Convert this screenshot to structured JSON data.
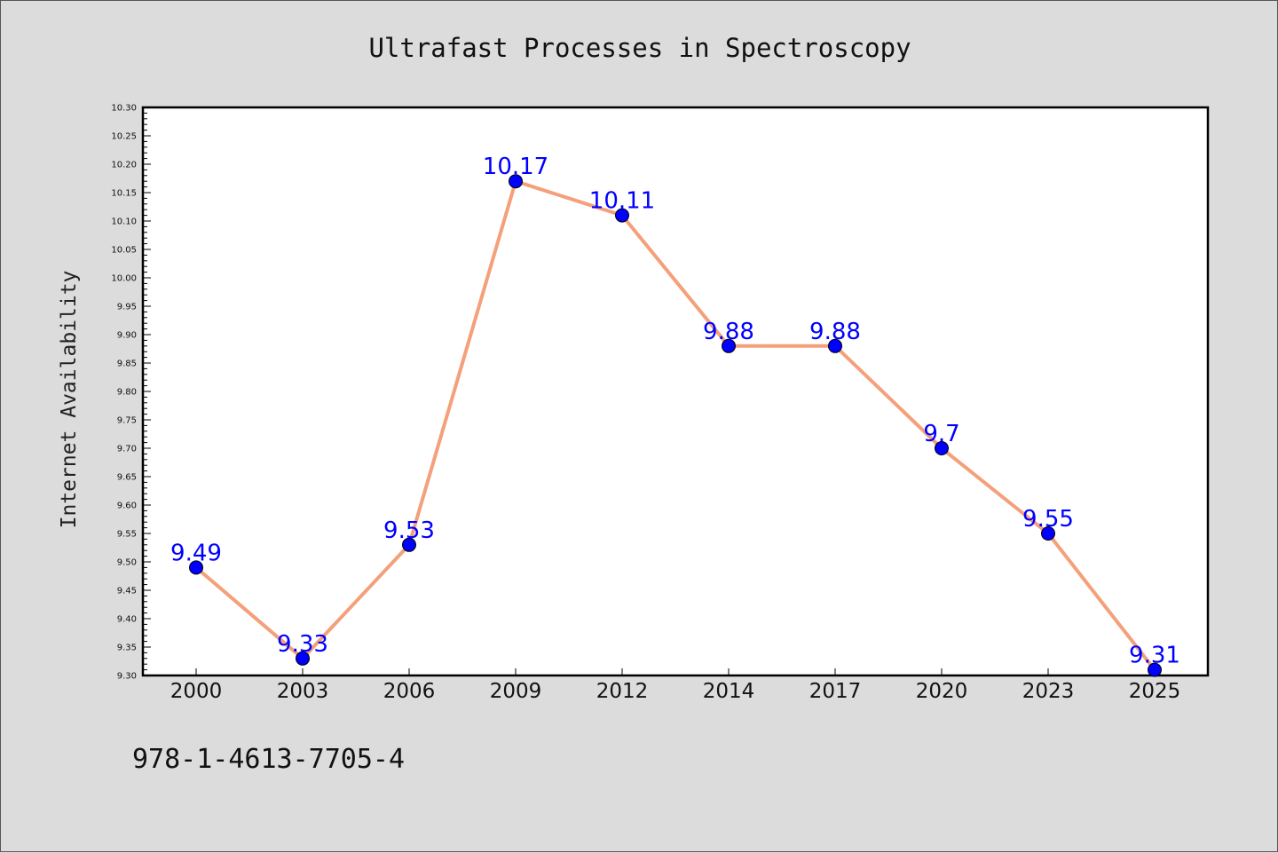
{
  "chart_data": {
    "type": "line",
    "title": "Ultrafast Processes in Spectroscopy",
    "xlabel": "",
    "ylabel": "Internet Availability",
    "categories": [
      "2000",
      "2003",
      "2006",
      "2009",
      "2012",
      "2014",
      "2017",
      "2020",
      "2023",
      "2025"
    ],
    "series": [
      {
        "values": [
          9.49,
          9.33,
          9.53,
          10.17,
          10.11,
          9.88,
          9.88,
          9.7,
          9.55,
          9.31
        ],
        "data_labels": [
          "9.49",
          "9.33",
          "9.53",
          "10.17",
          "10.11",
          "9.88",
          "9.88",
          "9.7",
          "9.55",
          "9.31"
        ],
        "line_color": "#f4a07a",
        "marker_color": "#0000ff"
      }
    ],
    "ylim": [
      9.3,
      10.3
    ],
    "yticks": [
      "9.30",
      "9.35",
      "9.40",
      "9.45",
      "9.50",
      "9.55",
      "9.60",
      "9.65",
      "9.70",
      "9.75",
      "9.80",
      "9.85",
      "9.90",
      "9.95",
      "10.00",
      "10.05",
      "10.10",
      "10.15",
      "10.20",
      "10.25",
      "10.30"
    ],
    "grid": false,
    "legend": "none",
    "annotation": "978-1-4613-7705-4"
  }
}
